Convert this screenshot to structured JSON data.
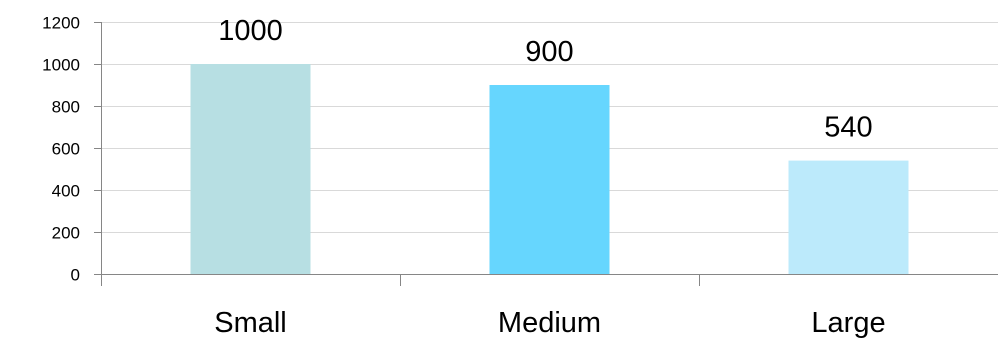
{
  "chart_data": {
    "type": "bar",
    "categories": [
      "Small",
      "Medium",
      "Large"
    ],
    "values": [
      1000,
      900,
      540
    ],
    "data_labels": [
      "1000",
      "900",
      "540"
    ],
    "y_ticks": [
      0,
      200,
      400,
      600,
      800,
      1000,
      1200
    ],
    "y_tick_labels": [
      "0",
      "200",
      "400",
      "600",
      "800",
      "1000",
      "1200"
    ],
    "ylim": [
      0,
      1200
    ],
    "grid": true,
    "legend": "none",
    "bar_colors": [
      "#b7dfe3",
      "#66d6fe",
      "#bceafb"
    ],
    "title": "",
    "xlabel": "",
    "ylabel": ""
  }
}
